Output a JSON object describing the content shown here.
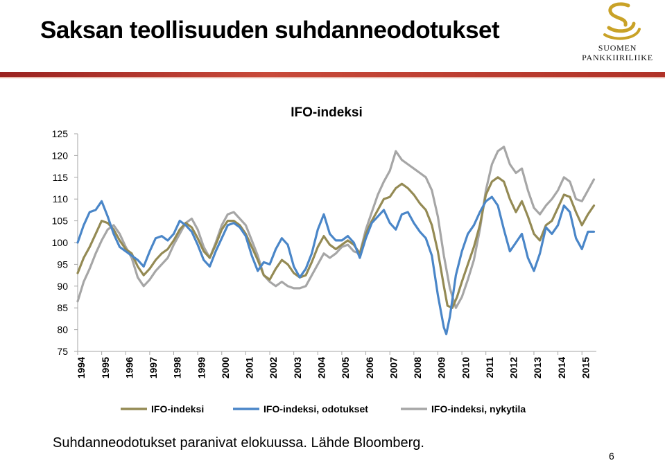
{
  "slide": {
    "title": "Saksan teollisuuden suhdanneodotukset",
    "caption": "Suhdanneodotukset paranivat elokuussa. Lähde Bloomberg.",
    "page_number": "6"
  },
  "logo": {
    "line1": "SUOMEN",
    "line2": "PANKKIIRILIIKE",
    "color": "#c9a227"
  },
  "colors": {
    "header_rule": "#b03228",
    "axis": "#a6a6a6"
  },
  "chart_data": {
    "type": "line",
    "title": "IFO-indeksi",
    "xlabel": "",
    "ylabel": "",
    "xlim": [
      1994.0,
      2015.6
    ],
    "ylim": [
      75,
      125
    ],
    "y_ticks": [
      75,
      80,
      85,
      90,
      95,
      100,
      105,
      110,
      115,
      120,
      125
    ],
    "x_tick_labels": [
      "1994",
      "1995",
      "1996",
      "1997",
      "1998",
      "1999",
      "2000",
      "2001",
      "2002",
      "2003",
      "2004",
      "2005",
      "2006",
      "2007",
      "2008",
      "2009",
      "2010",
      "2011",
      "2012",
      "2013",
      "2014",
      "2015"
    ],
    "grid": false,
    "legend": "bottom",
    "series": [
      {
        "name": "IFO-indeksi",
        "color": "#948a54",
        "points": [
          [
            1994.0,
            93
          ],
          [
            1994.25,
            96.5
          ],
          [
            1994.5,
            99
          ],
          [
            1994.75,
            102
          ],
          [
            1995.0,
            105
          ],
          [
            1995.25,
            104.5
          ],
          [
            1995.5,
            103
          ],
          [
            1995.75,
            100.5
          ],
          [
            1996.0,
            98.5
          ],
          [
            1996.25,
            97.5
          ],
          [
            1996.5,
            94.5
          ],
          [
            1996.75,
            92.5
          ],
          [
            1997.0,
            94
          ],
          [
            1997.25,
            96
          ],
          [
            1997.5,
            97.5
          ],
          [
            1997.75,
            98.5
          ],
          [
            1998.0,
            100.5
          ],
          [
            1998.25,
            103
          ],
          [
            1998.5,
            104.5
          ],
          [
            1998.75,
            103.5
          ],
          [
            1999.0,
            101
          ],
          [
            1999.25,
            98
          ],
          [
            1999.5,
            96.5
          ],
          [
            1999.75,
            99.5
          ],
          [
            2000.0,
            103
          ],
          [
            2000.25,
            105
          ],
          [
            2000.5,
            105
          ],
          [
            2000.75,
            104
          ],
          [
            2001.0,
            102
          ],
          [
            2001.25,
            99
          ],
          [
            2001.5,
            96
          ],
          [
            2001.75,
            92.5
          ],
          [
            2002.0,
            91.5
          ],
          [
            2002.25,
            94
          ],
          [
            2002.5,
            96
          ],
          [
            2002.75,
            95
          ],
          [
            2003.0,
            93
          ],
          [
            2003.25,
            92
          ],
          [
            2003.5,
            92.5
          ],
          [
            2003.75,
            95.5
          ],
          [
            2004.0,
            99
          ],
          [
            2004.25,
            101.5
          ],
          [
            2004.5,
            99.5
          ],
          [
            2004.75,
            98.5
          ],
          [
            2005.0,
            99.5
          ],
          [
            2005.25,
            100.5
          ],
          [
            2005.5,
            99.5
          ],
          [
            2005.75,
            97.5
          ],
          [
            2006.0,
            102
          ],
          [
            2006.25,
            105
          ],
          [
            2006.5,
            107.5
          ],
          [
            2006.75,
            110
          ],
          [
            2007.0,
            110.5
          ],
          [
            2007.25,
            112.5
          ],
          [
            2007.5,
            113.5
          ],
          [
            2007.75,
            112.5
          ],
          [
            2008.0,
            111
          ],
          [
            2008.25,
            109
          ],
          [
            2008.5,
            107.5
          ],
          [
            2008.75,
            104
          ],
          [
            2009.0,
            98
          ],
          [
            2009.25,
            90
          ],
          [
            2009.4,
            85.5
          ],
          [
            2009.6,
            85
          ],
          [
            2009.8,
            87.5
          ],
          [
            2010.0,
            91
          ],
          [
            2010.25,
            95
          ],
          [
            2010.5,
            99
          ],
          [
            2010.75,
            104
          ],
          [
            2011.0,
            111
          ],
          [
            2011.25,
            114
          ],
          [
            2011.5,
            115
          ],
          [
            2011.75,
            114
          ],
          [
            2012.0,
            110
          ],
          [
            2012.25,
            107
          ],
          [
            2012.5,
            109.5
          ],
          [
            2012.75,
            106
          ],
          [
            2013.0,
            102
          ],
          [
            2013.25,
            100.5
          ],
          [
            2013.5,
            104
          ],
          [
            2013.75,
            105
          ],
          [
            2014.0,
            108
          ],
          [
            2014.25,
            111
          ],
          [
            2014.5,
            110.5
          ],
          [
            2014.75,
            107
          ],
          [
            2015.0,
            104
          ],
          [
            2015.25,
            106.5
          ],
          [
            2015.5,
            108.5
          ]
        ]
      },
      {
        "name": "IFO-indeksi, odotukset",
        "color": "#4a86c8",
        "points": [
          [
            1994.0,
            100
          ],
          [
            1994.25,
            104
          ],
          [
            1994.5,
            107
          ],
          [
            1994.75,
            107.5
          ],
          [
            1995.0,
            109.5
          ],
          [
            1995.25,
            106
          ],
          [
            1995.5,
            102
          ],
          [
            1995.75,
            99
          ],
          [
            1996.0,
            98
          ],
          [
            1996.25,
            97
          ],
          [
            1996.5,
            96
          ],
          [
            1996.75,
            94.5
          ],
          [
            1997.0,
            98
          ],
          [
            1997.25,
            101
          ],
          [
            1997.5,
            101.5
          ],
          [
            1997.75,
            100.5
          ],
          [
            1998.0,
            102
          ],
          [
            1998.25,
            105
          ],
          [
            1998.5,
            104
          ],
          [
            1998.75,
            102.5
          ],
          [
            1999.0,
            99.5
          ],
          [
            1999.25,
            96
          ],
          [
            1999.5,
            94.5
          ],
          [
            1999.75,
            98
          ],
          [
            2000.0,
            101
          ],
          [
            2000.25,
            104
          ],
          [
            2000.5,
            104.5
          ],
          [
            2000.75,
            103.5
          ],
          [
            2001.0,
            101.5
          ],
          [
            2001.25,
            97
          ],
          [
            2001.5,
            93.5
          ],
          [
            2001.75,
            95.5
          ],
          [
            2002.0,
            95
          ],
          [
            2002.25,
            98.5
          ],
          [
            2002.5,
            101
          ],
          [
            2002.75,
            99.5
          ],
          [
            2003.0,
            94.5
          ],
          [
            2003.25,
            92
          ],
          [
            2003.5,
            94
          ],
          [
            2003.75,
            97.5
          ],
          [
            2004.0,
            103
          ],
          [
            2004.25,
            106.5
          ],
          [
            2004.5,
            102
          ],
          [
            2004.75,
            100.5
          ],
          [
            2005.0,
            100.5
          ],
          [
            2005.25,
            101.5
          ],
          [
            2005.5,
            100
          ],
          [
            2005.75,
            96.5
          ],
          [
            2006.0,
            101
          ],
          [
            2006.25,
            104.5
          ],
          [
            2006.5,
            106
          ],
          [
            2006.75,
            107.5
          ],
          [
            2007.0,
            104.5
          ],
          [
            2007.25,
            103
          ],
          [
            2007.5,
            106.5
          ],
          [
            2007.75,
            107
          ],
          [
            2008.0,
            104.5
          ],
          [
            2008.25,
            102.5
          ],
          [
            2008.5,
            101
          ],
          [
            2008.75,
            97
          ],
          [
            2009.0,
            88
          ],
          [
            2009.25,
            80.5
          ],
          [
            2009.35,
            79
          ],
          [
            2009.5,
            83
          ],
          [
            2009.75,
            92.5
          ],
          [
            2010.0,
            98
          ],
          [
            2010.25,
            102
          ],
          [
            2010.5,
            104
          ],
          [
            2010.75,
            107
          ],
          [
            2011.0,
            109.5
          ],
          [
            2011.25,
            110.5
          ],
          [
            2011.5,
            108.5
          ],
          [
            2011.75,
            103
          ],
          [
            2012.0,
            98
          ],
          [
            2012.25,
            100
          ],
          [
            2012.5,
            102
          ],
          [
            2012.75,
            96.5
          ],
          [
            2013.0,
            93.5
          ],
          [
            2013.25,
            97.5
          ],
          [
            2013.5,
            103.5
          ],
          [
            2013.75,
            102
          ],
          [
            2014.0,
            104
          ],
          [
            2014.25,
            108.5
          ],
          [
            2014.5,
            107
          ],
          [
            2014.75,
            101
          ],
          [
            2015.0,
            98.5
          ],
          [
            2015.25,
            102.5
          ],
          [
            2015.5,
            102.5
          ]
        ]
      },
      {
        "name": "IFO-indeksi, nykytila",
        "color": "#a6a6a6",
        "points": [
          [
            1994.0,
            86.5
          ],
          [
            1994.25,
            91
          ],
          [
            1994.5,
            94
          ],
          [
            1994.75,
            97.5
          ],
          [
            1995.0,
            100.5
          ],
          [
            1995.25,
            103
          ],
          [
            1995.5,
            104
          ],
          [
            1995.75,
            102
          ],
          [
            1996.0,
            99
          ],
          [
            1996.25,
            96.5
          ],
          [
            1996.5,
            92
          ],
          [
            1996.75,
            90
          ],
          [
            1997.0,
            91.5
          ],
          [
            1997.25,
            93.5
          ],
          [
            1997.5,
            95
          ],
          [
            1997.75,
            96.5
          ],
          [
            1998.0,
            99.5
          ],
          [
            1998.25,
            102
          ],
          [
            1998.5,
            104.5
          ],
          [
            1998.75,
            105.5
          ],
          [
            1999.0,
            103
          ],
          [
            1999.25,
            99
          ],
          [
            1999.5,
            96.5
          ],
          [
            1999.75,
            100
          ],
          [
            2000.0,
            104
          ],
          [
            2000.25,
            106.5
          ],
          [
            2000.5,
            107
          ],
          [
            2000.75,
            105.5
          ],
          [
            2001.0,
            104
          ],
          [
            2001.25,
            100.5
          ],
          [
            2001.5,
            97
          ],
          [
            2001.75,
            92.5
          ],
          [
            2002.0,
            91
          ],
          [
            2002.25,
            90
          ],
          [
            2002.5,
            91
          ],
          [
            2002.75,
            90
          ],
          [
            2003.0,
            89.5
          ],
          [
            2003.25,
            89.5
          ],
          [
            2003.5,
            90
          ],
          [
            2003.75,
            92.5
          ],
          [
            2004.0,
            95
          ],
          [
            2004.25,
            97.5
          ],
          [
            2004.5,
            96.5
          ],
          [
            2004.75,
            97.5
          ],
          [
            2005.0,
            99
          ],
          [
            2005.25,
            99.5
          ],
          [
            2005.5,
            98
          ],
          [
            2005.75,
            97.5
          ],
          [
            2006.0,
            103
          ],
          [
            2006.25,
            107
          ],
          [
            2006.5,
            111
          ],
          [
            2006.75,
            114
          ],
          [
            2007.0,
            116.5
          ],
          [
            2007.25,
            121
          ],
          [
            2007.5,
            119
          ],
          [
            2007.75,
            118
          ],
          [
            2008.0,
            117
          ],
          [
            2008.25,
            116
          ],
          [
            2008.5,
            115
          ],
          [
            2008.75,
            112
          ],
          [
            2009.0,
            106
          ],
          [
            2009.25,
            97
          ],
          [
            2009.5,
            89.5
          ],
          [
            2009.75,
            85
          ],
          [
            2010.0,
            87.5
          ],
          [
            2010.25,
            91.5
          ],
          [
            2010.5,
            96
          ],
          [
            2010.75,
            103
          ],
          [
            2011.0,
            112
          ],
          [
            2011.25,
            118
          ],
          [
            2011.5,
            121
          ],
          [
            2011.75,
            122
          ],
          [
            2012.0,
            118
          ],
          [
            2012.25,
            116
          ],
          [
            2012.5,
            117
          ],
          [
            2012.75,
            112
          ],
          [
            2013.0,
            108
          ],
          [
            2013.25,
            106.5
          ],
          [
            2013.5,
            108.5
          ],
          [
            2013.75,
            110
          ],
          [
            2014.0,
            112
          ],
          [
            2014.25,
            115
          ],
          [
            2014.5,
            114
          ],
          [
            2014.75,
            110
          ],
          [
            2015.0,
            109.5
          ],
          [
            2015.25,
            112
          ],
          [
            2015.5,
            114.5
          ]
        ]
      }
    ]
  }
}
